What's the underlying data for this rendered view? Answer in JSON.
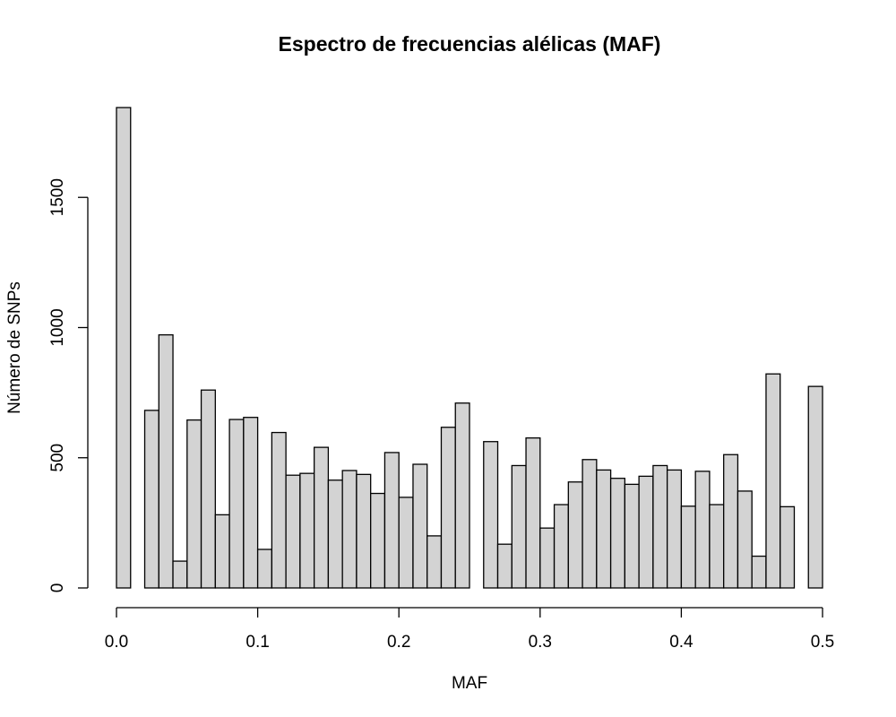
{
  "chart_data": {
    "type": "bar",
    "title": "Espectro de frecuencias alélicas (MAF)",
    "xlabel": "MAF",
    "ylabel": "Número de SNPs",
    "bin_width": 0.01,
    "bin_starts": [
      0.0,
      0.01,
      0.02,
      0.03,
      0.04,
      0.05,
      0.06,
      0.07,
      0.08,
      0.09,
      0.1,
      0.11,
      0.12,
      0.13,
      0.14,
      0.15,
      0.16,
      0.17,
      0.18,
      0.19,
      0.2,
      0.21,
      0.22,
      0.23,
      0.24,
      0.25,
      0.26,
      0.27,
      0.28,
      0.29,
      0.3,
      0.31,
      0.32,
      0.33,
      0.34,
      0.35,
      0.36,
      0.37,
      0.38,
      0.39,
      0.4,
      0.41,
      0.42,
      0.43,
      0.44,
      0.45,
      0.46,
      0.47,
      0.48,
      0.49
    ],
    "values": [
      1845,
      0,
      682,
      972,
      103,
      645,
      760,
      281,
      647,
      655,
      148,
      597,
      433,
      440,
      540,
      414,
      451,
      436,
      363,
      520,
      348,
      475,
      200,
      617,
      710,
      0,
      562,
      168,
      470,
      576,
      230,
      320,
      407,
      493,
      453,
      421,
      398,
      429,
      470,
      453,
      314,
      448,
      320,
      512,
      372,
      122,
      822,
      312,
      0,
      774
    ],
    "xlim": [
      0.0,
      0.5
    ],
    "ylim": [
      0,
      1845
    ],
    "x_ticks": [
      0.0,
      0.1,
      0.2,
      0.3,
      0.4,
      0.5
    ],
    "x_tick_labels": [
      "0.0",
      "0.1",
      "0.2",
      "0.3",
      "0.4",
      "0.5"
    ],
    "y_ticks": [
      0,
      500,
      1000,
      1500
    ],
    "y_tick_labels": [
      "0",
      "500",
      "1000",
      "1500"
    ],
    "colors": {
      "bar_fill": "#d3d3d3",
      "bar_stroke": "#000000",
      "axis": "#000000"
    },
    "grid": false,
    "legend": "none"
  }
}
